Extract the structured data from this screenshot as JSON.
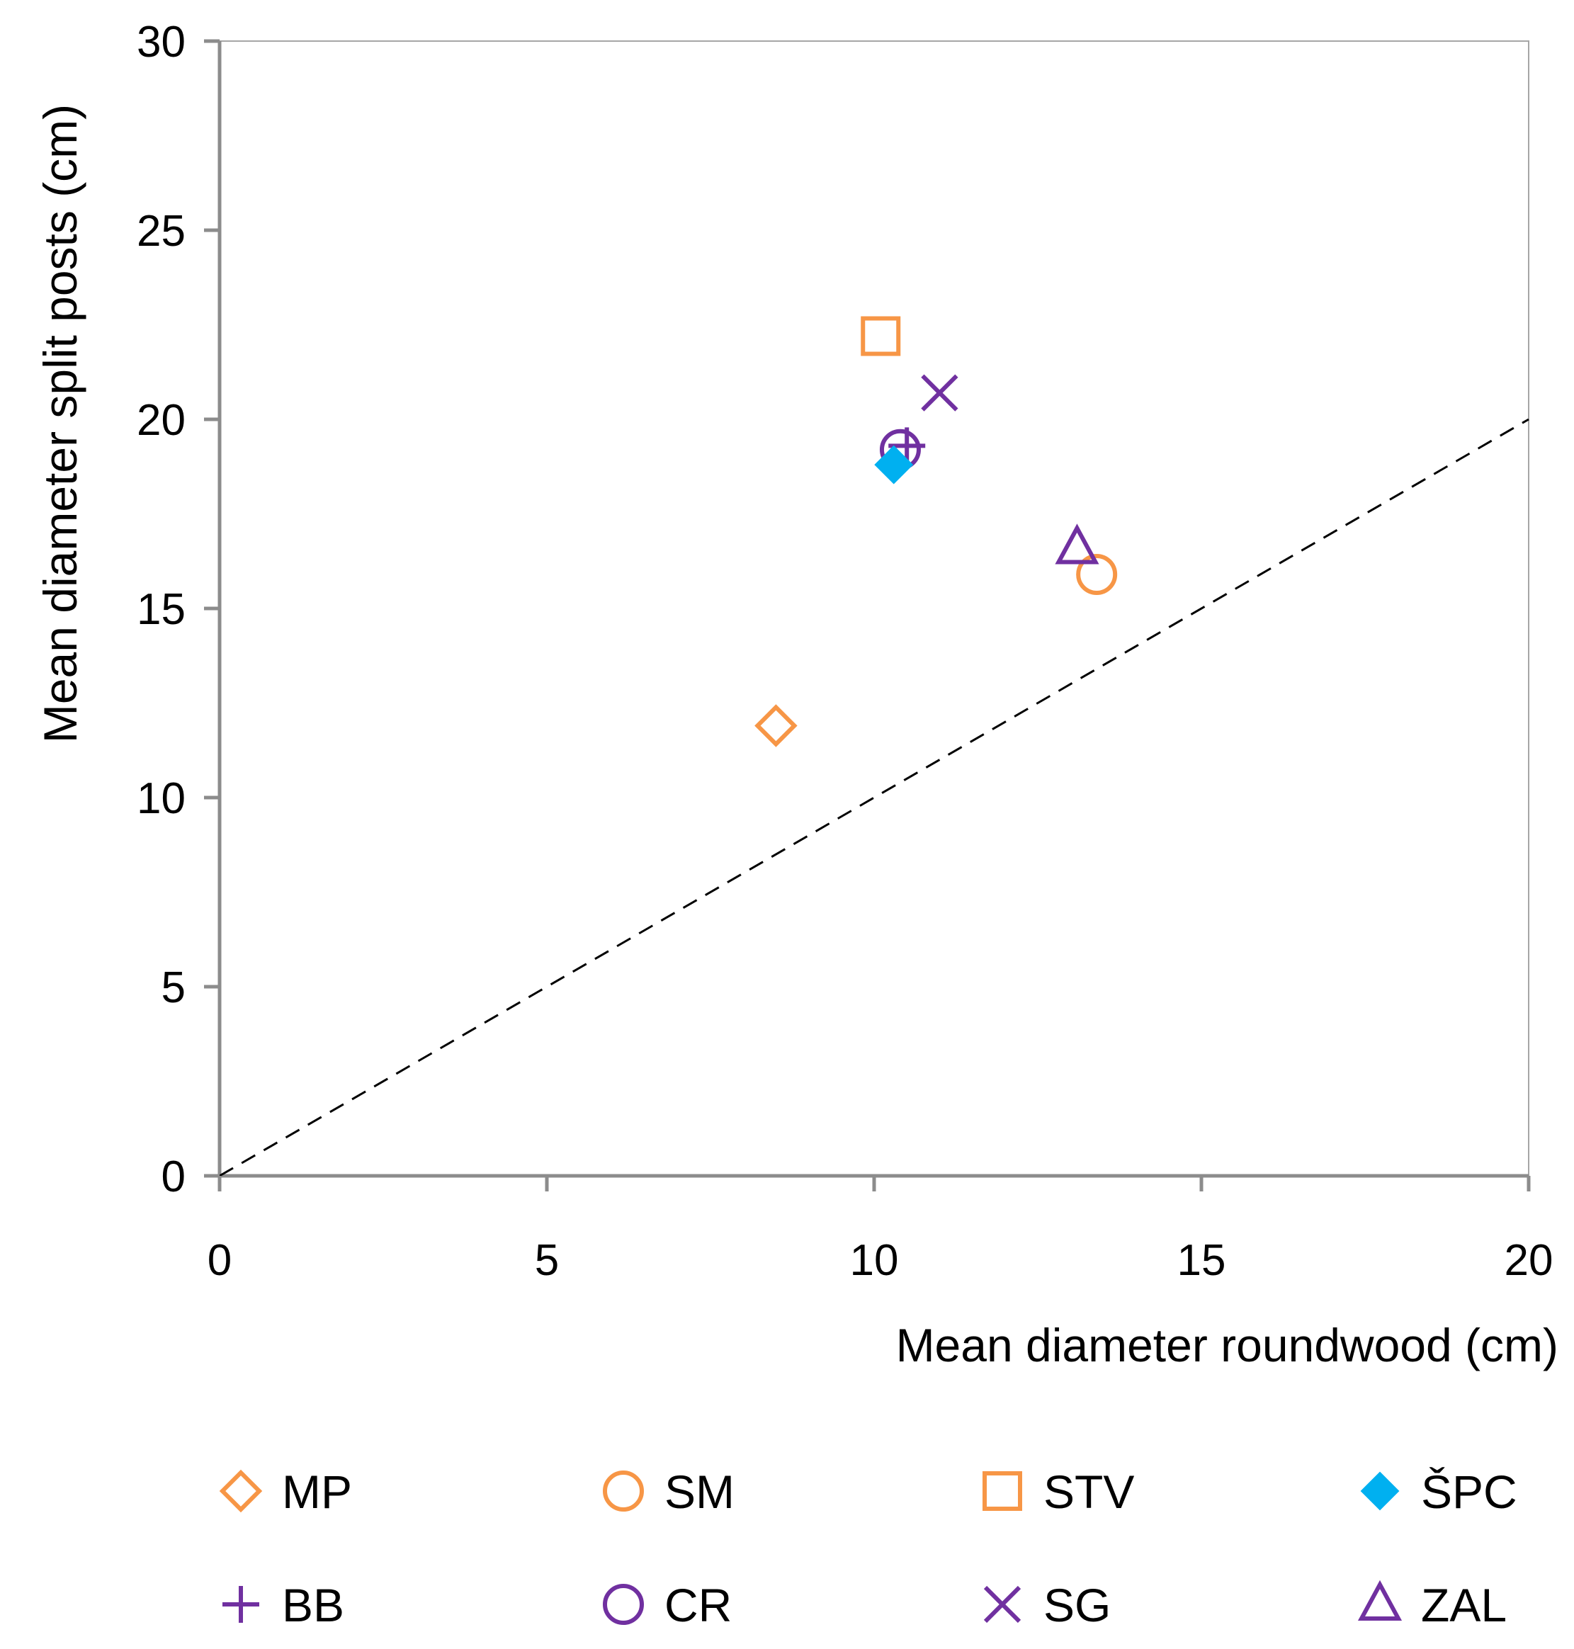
{
  "chart_data": {
    "type": "scatter",
    "title": "",
    "xlabel": "Mean diameter roundwood (cm)",
    "ylabel": "Mean diameter split posts (cm)",
    "xlim": [
      0,
      20
    ],
    "ylim": [
      0,
      30
    ],
    "xticks": [
      "0",
      "5",
      "10",
      "15",
      "20"
    ],
    "yticks": [
      "0",
      "5",
      "10",
      "15",
      "20",
      "25",
      "30"
    ],
    "grid": false,
    "reference_line": {
      "style": "dashed",
      "from": [
        0,
        0
      ],
      "to": [
        20,
        20
      ],
      "color": "#000000"
    },
    "legend_position": "bottom",
    "series": [
      {
        "name": "MP",
        "marker": "diamond-open",
        "color": "#F79646",
        "x": 8.5,
        "y": 11.9
      },
      {
        "name": "SM",
        "marker": "circle-open",
        "color": "#F79646",
        "x": 13.4,
        "y": 15.9
      },
      {
        "name": "STV",
        "marker": "square-open",
        "color": "#F79646",
        "x": 10.1,
        "y": 22.2
      },
      {
        "name": "ŠPC",
        "marker": "diamond-filled",
        "color": "#00B0F0",
        "x": 10.3,
        "y": 18.8
      },
      {
        "name": "BB",
        "marker": "plus",
        "color": "#7030A0",
        "x": 10.5,
        "y": 19.3
      },
      {
        "name": "CR",
        "marker": "circle-open",
        "color": "#7030A0",
        "x": 10.4,
        "y": 19.2
      },
      {
        "name": "SG",
        "marker": "cross",
        "color": "#7030A0",
        "x": 11.0,
        "y": 20.7
      },
      {
        "name": "ZAL",
        "marker": "triangle-open",
        "color": "#7030A0",
        "x": 13.1,
        "y": 16.6
      }
    ]
  }
}
